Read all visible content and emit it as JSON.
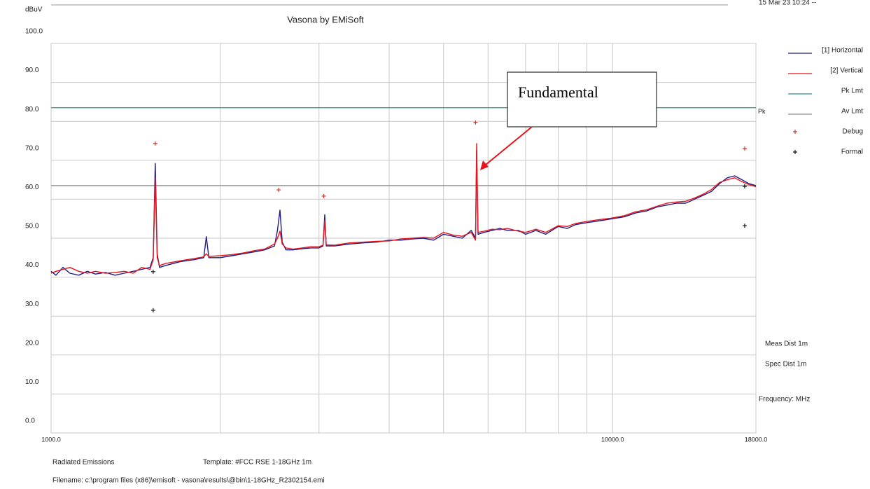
{
  "chart_data": {
    "type": "line",
    "title": "Vasona by EMiSoft",
    "timestamp": "15 Mar 23 10:24 --",
    "y_label": "dBuV",
    "x_log": true,
    "grid": true,
    "xlim": [
      1000,
      18000
    ],
    "ylim": [
      0,
      100
    ],
    "xticks": [
      {
        "value": 1000,
        "label": "1000.0"
      },
      {
        "value": 10000,
        "label": "10000.0"
      },
      {
        "value": 18000,
        "label": "18000.0"
      }
    ],
    "xminor": [
      2000,
      3000,
      4000,
      5000,
      6000,
      7000,
      8000,
      9000
    ],
    "yticks": [
      {
        "value": 0,
        "label": "0.0"
      },
      {
        "value": 10,
        "label": "10.0"
      },
      {
        "value": 20,
        "label": "20.0"
      },
      {
        "value": 30,
        "label": "30.0"
      },
      {
        "value": 40,
        "label": "40.0"
      },
      {
        "value": 50,
        "label": "50.0"
      },
      {
        "value": 60,
        "label": "60.0"
      },
      {
        "value": 70,
        "label": "70.0"
      },
      {
        "value": 80,
        "label": "80.0"
      },
      {
        "value": 90,
        "label": "90.0"
      },
      {
        "value": 100,
        "label": "100.0"
      }
    ],
    "series": [
      {
        "name": "[1] Horizontal",
        "color": "#1c1c86",
        "x": [
          1000,
          1020,
          1050,
          1080,
          1120,
          1160,
          1200,
          1250,
          1300,
          1350,
          1400,
          1450,
          1500,
          1520,
          1533,
          1545,
          1560,
          1600,
          1700,
          1800,
          1870,
          1890,
          1910,
          2000,
          2100,
          2200,
          2300,
          2400,
          2500,
          2530,
          2556,
          2580,
          2620,
          2700,
          2800,
          2900,
          3000,
          3050,
          3072,
          3090,
          3200,
          3400,
          3600,
          3800,
          4000,
          4200,
          4400,
          4600,
          4800,
          5000,
          5200,
          5400,
          5600,
          5700,
          5727,
          5760,
          5900,
          6100,
          6300,
          6500,
          6800,
          7000,
          7300,
          7600,
          8000,
          8300,
          8600,
          9000,
          9500,
          10000,
          10500,
          11000,
          11500,
          12000,
          12500,
          13000,
          13500,
          14000,
          14500,
          15000,
          15500,
          16000,
          16500,
          17000,
          17500,
          18000
        ],
        "values": [
          41.5,
          40.5,
          42.5,
          41,
          40.5,
          41.5,
          40.8,
          41.2,
          40.5,
          41,
          41.5,
          42,
          42.5,
          45,
          69.2,
          46,
          42.5,
          43,
          44,
          44.5,
          45,
          50.4,
          45,
          45,
          45.5,
          46,
          46.5,
          47,
          48,
          52,
          57.2,
          49,
          47,
          47,
          47.3,
          47.5,
          47.5,
          48,
          56,
          48,
          48,
          48.5,
          48.8,
          49,
          49.5,
          49.5,
          49.8,
          50,
          49.5,
          51,
          50.5,
          50,
          52,
          50,
          72.5,
          51,
          51.5,
          52,
          52.5,
          52,
          52,
          51,
          52,
          51,
          53,
          52.5,
          53.5,
          54,
          54.5,
          55,
          55.5,
          56.5,
          57,
          58,
          58.5,
          59,
          59,
          60,
          61,
          62,
          64,
          65.5,
          66,
          65,
          64,
          63.5
        ]
      },
      {
        "name": "[2] Vertical",
        "color": "#e8141c",
        "x": [
          1000,
          1020,
          1050,
          1080,
          1120,
          1160,
          1200,
          1250,
          1300,
          1350,
          1400,
          1450,
          1500,
          1520,
          1533,
          1545,
          1560,
          1600,
          1700,
          1800,
          1870,
          1890,
          1910,
          2000,
          2100,
          2200,
          2300,
          2400,
          2500,
          2530,
          2556,
          2580,
          2620,
          2700,
          2800,
          2900,
          3000,
          3050,
          3072,
          3090,
          3200,
          3400,
          3600,
          3800,
          4000,
          4200,
          4400,
          4600,
          4800,
          5000,
          5200,
          5400,
          5600,
          5700,
          5727,
          5760,
          5900,
          6100,
          6300,
          6500,
          6800,
          7000,
          7300,
          7600,
          8000,
          8300,
          8600,
          9000,
          9500,
          10000,
          10500,
          11000,
          11500,
          12000,
          12500,
          13000,
          13500,
          14000,
          14500,
          15000,
          15500,
          16000,
          16500,
          17000,
          17500,
          18000
        ],
        "values": [
          41,
          41.5,
          42,
          42.5,
          41.5,
          41,
          41.5,
          41,
          41.2,
          41.5,
          41,
          42.5,
          42,
          44.5,
          65.5,
          45,
          43,
          43.5,
          44.2,
          44.8,
          45.2,
          46,
          45.3,
          45.5,
          45.8,
          46.2,
          46.8,
          47.2,
          48.5,
          50,
          51.8,
          48.5,
          47.5,
          47.2,
          47.5,
          47.8,
          47.8,
          48.2,
          54.5,
          48.3,
          48.2,
          48.8,
          49,
          49.2,
          49.3,
          49.8,
          50,
          50.2,
          50,
          51.5,
          50.8,
          50.5,
          51.5,
          49.5,
          74.3,
          51.5,
          51.8,
          52.3,
          52.2,
          52.5,
          51.8,
          51.5,
          52.3,
          51.5,
          53.2,
          53,
          53.8,
          54.3,
          54.8,
          55.2,
          55.8,
          56.8,
          57.3,
          58.2,
          59,
          59.3,
          59.5,
          60.3,
          61.3,
          62.5,
          64.3,
          65,
          65.5,
          64.5,
          63.8,
          63.2
        ]
      }
    ],
    "limits": [
      {
        "name": "Pk Lmt",
        "label": "Pk",
        "color": "#2a8f8a",
        "value": 83.5
      },
      {
        "name": "Av Lmt",
        "color": "#8a8a8a",
        "value": 63.5
      }
    ],
    "markers": [
      {
        "name": "Debug",
        "color": "#c0392b",
        "x": [
          1533,
          2543,
          3060,
          5700,
          17190
        ],
        "values": [
          74.3,
          62.4,
          60.8,
          79.7,
          73
        ]
      },
      {
        "name": "Formal",
        "color": "#111111",
        "x": [
          1520,
          1520,
          17190,
          17190
        ],
        "values": [
          41.4,
          31.5,
          53.2,
          63.3
        ]
      }
    ],
    "annotation": "Fundamental",
    "side_notes": [
      "Meas Dist 1m",
      "Spec Dist 1m",
      "Frequency: MHz"
    ],
    "footer": {
      "test": "Radiated Emissions",
      "template": "Template: #FCC RSE 1-18GHz 1m",
      "filename": "Filename: c:\\program files (x86)\\emisoft - vasona\\results\\@bin\\1-18GHz_R2302154.emi"
    }
  }
}
